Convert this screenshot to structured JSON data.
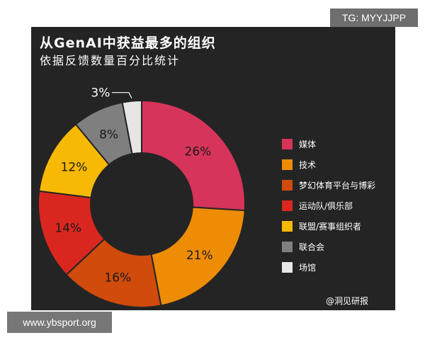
{
  "watermarks": {
    "tg": "TG: MYYJJPP",
    "site": "www.ybsport.org",
    "brand": "@洞见研报"
  },
  "chart_data": {
    "type": "pie",
    "title": "从GenAI中获益最多的组织",
    "subtitle": "依据反馈数量百分比统计",
    "categories": [
      "媒体",
      "技术",
      "梦幻体育平台与博彩",
      "运动队/俱乐部",
      "联盟/赛事组织者",
      "联合会",
      "场馆"
    ],
    "values": [
      26,
      21,
      16,
      14,
      12,
      8,
      3
    ],
    "labels": [
      "26%",
      "21%",
      "16%",
      "14%",
      "12%",
      "8%",
      "3%"
    ],
    "colors": [
      "#d6345a",
      "#ee8c06",
      "#d04b0c",
      "#d9271f",
      "#f8b904",
      "#7f7f7f",
      "#e6e6e6"
    ],
    "legend": "right"
  }
}
